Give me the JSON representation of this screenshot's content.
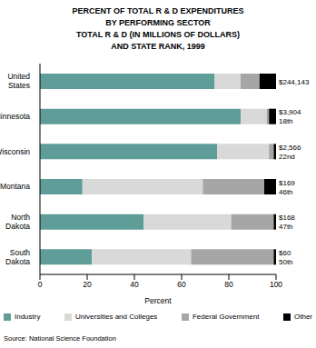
{
  "chart_data": {
    "type": "bar",
    "title": "PERCENT OF TOTAL R & D EXPENDITURES\nBY PERFORMING SECTOR\nTOTAL R & D (IN MILLIONS OF DOLLARS)\nAND STATE RANK, 1999",
    "orientation": "horizontal",
    "stacked": true,
    "grid": false,
    "categories": [
      "United States",
      "Minnesota",
      "Wisconsin",
      "Montana",
      "North Dakota",
      "South Dakota"
    ],
    "series": [
      {
        "name": "Industry",
        "color": "#5f9e98",
        "values": [
          74,
          85,
          75,
          18,
          44,
          22
        ]
      },
      {
        "name": "Universities and Colleges",
        "color": "#d9d9d9",
        "values": [
          11,
          11,
          22,
          51,
          37,
          42
        ]
      },
      {
        "name": "Federal Government",
        "color": "#a6a6a6",
        "values": [
          8,
          1,
          2,
          26,
          18,
          35
        ]
      },
      {
        "name": "Other",
        "color": "#000000",
        "values": [
          7,
          3,
          1,
          5,
          1,
          1
        ]
      }
    ],
    "xlim": [
      0,
      100
    ],
    "xticks": [
      0,
      20,
      40,
      60,
      80,
      100
    ],
    "x_label": "Percent",
    "totals": [
      "$244,143",
      "$3,904",
      "$2,566",
      "$169",
      "$168",
      "$60"
    ],
    "ranks": [
      null,
      "18th",
      "22nd",
      "46th",
      "47th",
      "50th"
    ],
    "source": "Source: National Science Foundation"
  }
}
